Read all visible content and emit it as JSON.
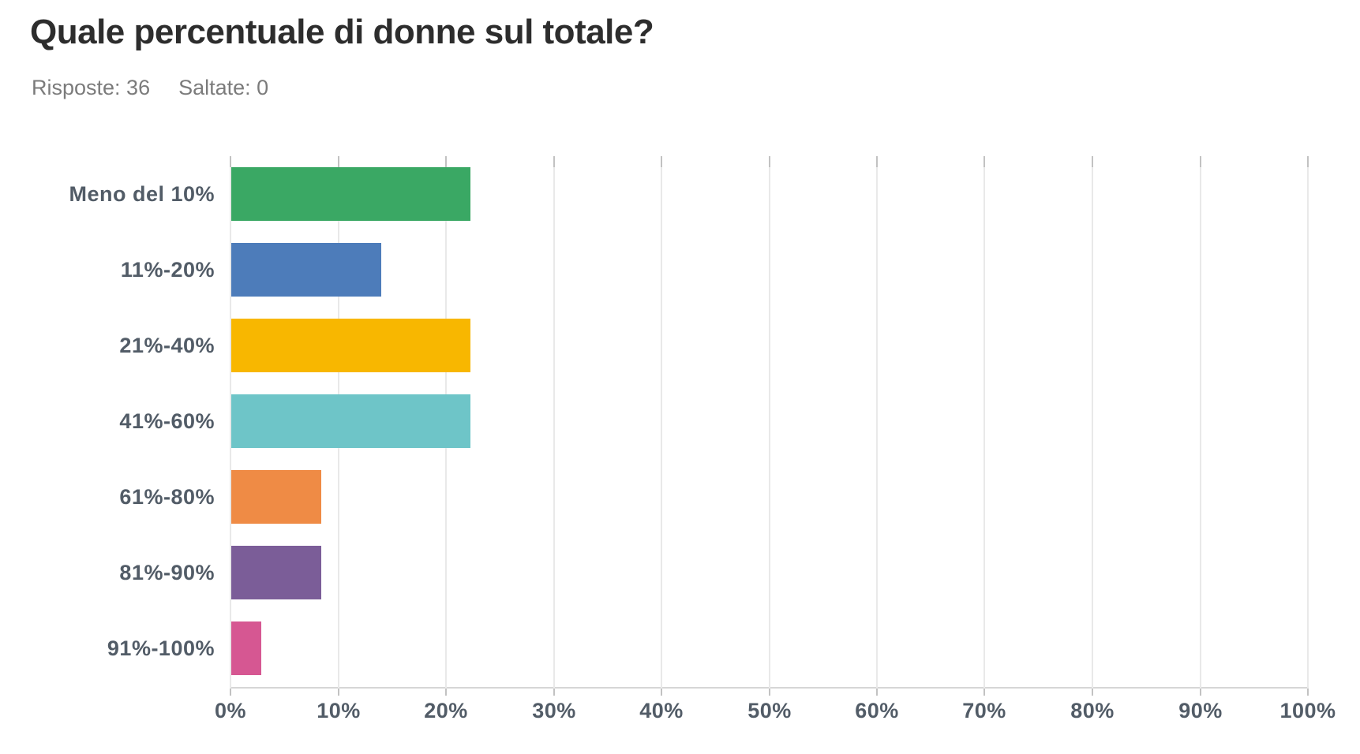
{
  "header": {
    "title": "Quale percentuale di donne sul totale?",
    "answered_label": "Risposte: 36",
    "skipped_label": "Saltate: 0"
  },
  "chart_data": {
    "type": "bar",
    "orientation": "horizontal",
    "title": "Quale percentuale di donne sul totale?",
    "categories": [
      "Meno del 10%",
      "11%-20%",
      "21%-40%",
      "41%-60%",
      "61%-80%",
      "81%-90%",
      "91%-100%"
    ],
    "values": [
      22.22,
      13.89,
      22.22,
      22.22,
      8.33,
      8.33,
      2.78
    ],
    "bar_colors": [
      "#3aa864",
      "#4d7cba",
      "#f8b700",
      "#6ec5c8",
      "#ef8b45",
      "#7b5d98",
      "#d65792"
    ],
    "x_ticks": [
      "0%",
      "10%",
      "20%",
      "30%",
      "40%",
      "50%",
      "60%",
      "70%",
      "80%",
      "90%",
      "100%"
    ],
    "xlim": [
      0,
      100
    ],
    "grid": true,
    "xlabel": "",
    "ylabel": "",
    "legend": "none"
  },
  "colors": {
    "title_text": "#2d2d2d",
    "subtitle_text": "#7b7b7b",
    "axis_label_text": "#525c67",
    "gridline": "#e9e9e9",
    "axis_line": "#d6d6d6",
    "tick": "#c2c2c2"
  }
}
